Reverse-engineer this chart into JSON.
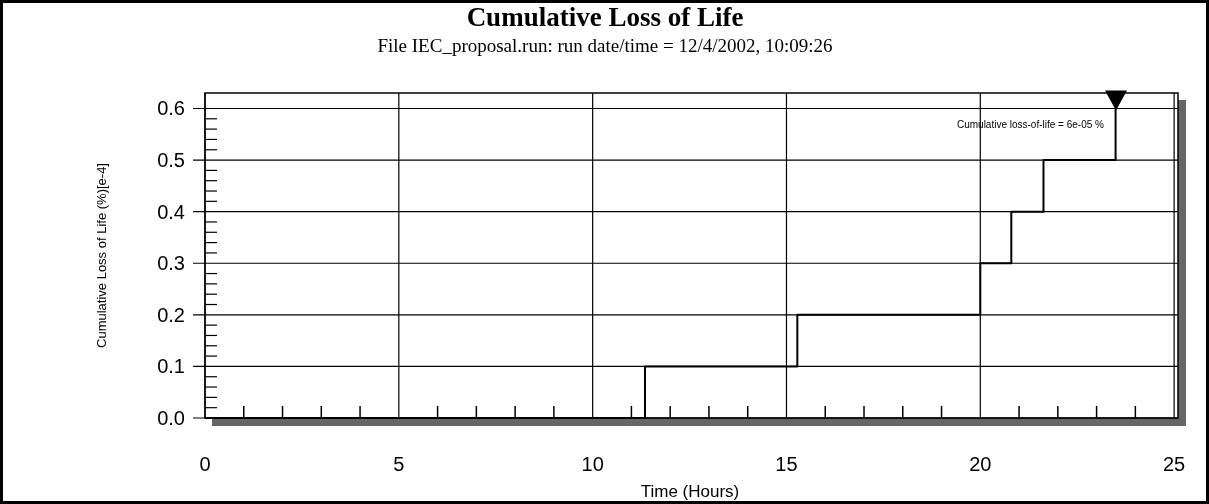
{
  "chart_data": {
    "type": "step",
    "title": "Cumulative Loss of Life",
    "subtitle": "File IEC_proposal.run: run date/time = 12/4/2002, 10:09:26",
    "xlabel": "Time (Hours)",
    "ylabel": "Cumulative Loss of Life (%)[e-4]",
    "annotations": [
      {
        "text": "Cumulative loss-of-life = 6e-05 %",
        "x": 23.5,
        "y": 0.6
      }
    ],
    "series": [
      {
        "color": "#000000",
        "x": [
          0,
          11.35,
          15.28,
          20.0,
          20.8,
          21.63,
          23.49
        ],
        "values": [
          0,
          0.1,
          0.2,
          0.3,
          0.4,
          0.5,
          0.6
        ]
      }
    ],
    "xlim": [
      0,
      25.1
    ],
    "ylim": [
      0,
      0.63
    ],
    "xticks": [
      0,
      {
        "value": 1,
        "label": null
      },
      {
        "value": 2,
        "label": null
      },
      {
        "value": 3,
        "label": null
      },
      {
        "value": 4,
        "label": null
      },
      5,
      {
        "value": 6,
        "label": null
      },
      {
        "value": 7,
        "label": null
      },
      {
        "value": 8,
        "label": null
      },
      {
        "value": 9,
        "label": null
      },
      10,
      {
        "value": 11,
        "label": null
      },
      {
        "value": 12,
        "label": null
      },
      {
        "value": 13,
        "label": null
      },
      {
        "value": 14,
        "label": null
      },
      15,
      {
        "value": 16,
        "label": null
      },
      {
        "value": 17,
        "label": null
      },
      {
        "value": 18,
        "label": null
      },
      {
        "value": 19,
        "label": null
      },
      20,
      {
        "value": 21,
        "label": null
      },
      {
        "value": 22,
        "label": null
      },
      {
        "value": 23,
        "label": null
      },
      {
        "value": 24,
        "label": null
      },
      25
    ],
    "yticks": [
      {
        "value": 0,
        "label": "0.0"
      },
      {
        "value": 0.02,
        "label": null
      },
      {
        "value": 0.04,
        "label": null
      },
      {
        "value": 0.06,
        "label": null
      },
      {
        "value": 0.08,
        "label": null
      },
      0.1,
      {
        "value": 0.12,
        "label": null
      },
      {
        "value": 0.14,
        "label": null
      },
      {
        "value": 0.16,
        "label": null
      },
      {
        "value": 0.18,
        "label": null
      },
      0.2,
      {
        "value": 0.22,
        "label": null
      },
      {
        "value": 0.24,
        "label": null
      },
      {
        "value": 0.26,
        "label": null
      },
      {
        "value": 0.28,
        "label": null
      },
      0.3,
      {
        "value": 0.32,
        "label": null
      },
      {
        "value": 0.34,
        "label": null
      },
      {
        "value": 0.36,
        "label": null
      },
      {
        "value": 0.38,
        "label": null
      },
      0.4,
      {
        "value": 0.42,
        "label": null
      },
      {
        "value": 0.44,
        "label": null
      },
      {
        "value": 0.46,
        "label": null
      },
      {
        "value": 0.48,
        "label": null
      },
      0.5,
      {
        "value": 0.52,
        "label": null
      },
      {
        "value": 0.54,
        "label": null
      },
      {
        "value": 0.56,
        "label": null
      },
      {
        "value": 0.58,
        "label": null
      },
      0.6
    ],
    "grid": true,
    "marker": "none",
    "line_style": "solid"
  }
}
